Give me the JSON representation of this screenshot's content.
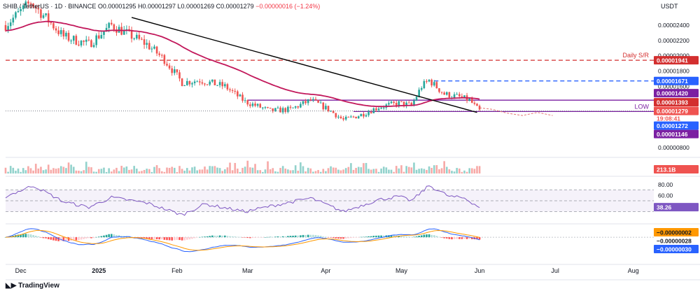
{
  "header": {
    "symbol": "SHIB / TetherUS · 1D · BINANCE",
    "open": "O0.00001295",
    "high": "H0.00001297",
    "low": "L0.00001269",
    "close": "C0.00001279",
    "change": "−0.00000016 (−1.24%)"
  },
  "currency": "USDT",
  "brand": "TradingView",
  "colors": {
    "up": "#26a69a",
    "down": "#ef5350",
    "ema": "#c2185b",
    "trendline": "#000000",
    "support": "#7b1fa2",
    "resistance": "#d32f2f",
    "level_blue": "#2962ff",
    "rsi": "#7e57c2",
    "macd": "#2962ff",
    "signal": "#ff9800"
  },
  "chart_data": {
    "type": "candlestick",
    "x_axis": {
      "range": [
        "2024-11-25",
        "2025-08-08"
      ],
      "tick_labels": [
        {
          "date": "2024-12-01",
          "label": "Dec"
        },
        {
          "date": "2025-01-01",
          "label": "2025"
        },
        {
          "date": "2025-02-01",
          "label": "Feb"
        },
        {
          "date": "2025-03-01",
          "label": "Mar"
        },
        {
          "date": "2025-04-01",
          "label": "Apr"
        },
        {
          "date": "2025-05-01",
          "label": "May"
        },
        {
          "date": "2025-06-01",
          "label": "Jun"
        },
        {
          "date": "2025-07-01",
          "label": "Jul"
        },
        {
          "date": "2025-08-01",
          "label": "Aug"
        }
      ]
    },
    "price_axis": {
      "range": [
        7e-06,
        2.6e-05
      ],
      "ticks": [
        "0.00002400",
        "0.00002200",
        "0.00002000",
        "0.00001800",
        "0.00001600",
        "0.00000800"
      ]
    },
    "key_points": [
      {
        "date": "2024-11-25",
        "close": 2.4e-05
      },
      {
        "date": "2024-12-05",
        "close": 2.7e-05
      },
      {
        "date": "2024-12-18",
        "close": 2.25e-05
      },
      {
        "date": "2024-12-28",
        "close": 2.15e-05
      },
      {
        "date": "2025-01-06",
        "close": 2.4e-05
      },
      {
        "date": "2025-01-20",
        "close": 2.15e-05
      },
      {
        "date": "2025-01-27",
        "close": 1.95e-05
      },
      {
        "date": "2025-02-03",
        "close": 1.65e-05
      },
      {
        "date": "2025-02-10",
        "close": 1.68e-05
      },
      {
        "date": "2025-02-20",
        "close": 1.6e-05
      },
      {
        "date": "2025-02-28",
        "close": 1.4e-05
      },
      {
        "date": "2025-03-10",
        "close": 1.28e-05
      },
      {
        "date": "2025-03-18",
        "close": 1.3e-05
      },
      {
        "date": "2025-03-26",
        "close": 1.42e-05
      },
      {
        "date": "2025-04-02",
        "close": 1.3e-05
      },
      {
        "date": "2025-04-08",
        "close": 1.16e-05
      },
      {
        "date": "2025-04-15",
        "close": 1.23e-05
      },
      {
        "date": "2025-04-22",
        "close": 1.33e-05
      },
      {
        "date": "2025-04-30",
        "close": 1.38e-05
      },
      {
        "date": "2025-05-05",
        "close": 1.35e-05
      },
      {
        "date": "2025-05-09",
        "close": 1.6e-05
      },
      {
        "date": "2025-05-12",
        "close": 1.68e-05
      },
      {
        "date": "2025-05-18",
        "close": 1.5e-05
      },
      {
        "date": "2025-05-24",
        "close": 1.46e-05
      },
      {
        "date": "2025-05-28",
        "close": 1.42e-05
      },
      {
        "date": "2025-05-31",
        "close": 1.31e-05
      },
      {
        "date": "2025-06-01",
        "close": 1.28e-05
      }
    ],
    "ema_label_value": "0.00001393",
    "horizontal_levels": [
      {
        "label": "Daily S/R",
        "value_label": "0.00001941",
        "value": 1.941e-05,
        "style": "dashed",
        "color": "#d32f2f",
        "from": "2024-11-25"
      },
      {
        "label": "",
        "value_label": "0.00001671",
        "value": 1.671e-05,
        "style": "dashed",
        "color": "#2962ff",
        "from": "2025-05-14"
      },
      {
        "label": "",
        "value_label": "0.00001420",
        "value": 1.42e-05,
        "style": "solid",
        "color": "#7b1fa2",
        "from": "2025-03-01"
      },
      {
        "label": "LOW",
        "value_label": "0.00001272",
        "value": 1.272e-05,
        "style": "solid",
        "color": "#7b1fa2",
        "from": "2025-04-12"
      }
    ],
    "current_price": {
      "value": 1.279e-05,
      "label": "0.00001279",
      "countdown": "19:08:41"
    },
    "extra_price_label": "0.00001146",
    "trendline": {
      "from": {
        "date": "2025-01-14",
        "value": 2.5e-05
      },
      "to": {
        "date": "2025-05-31",
        "value": 1.26e-05
      }
    },
    "projection": [
      {
        "date": "2025-06-01",
        "value": 1.32e-05
      },
      {
        "date": "2025-06-06",
        "value": 1.3e-05
      },
      {
        "date": "2025-06-12",
        "value": 1.25e-05
      },
      {
        "date": "2025-06-18",
        "value": 1.22e-05
      },
      {
        "date": "2025-06-24",
        "value": 1.26e-05
      },
      {
        "date": "2025-06-30",
        "value": 1.22e-05
      }
    ],
    "volume": {
      "last_label": "213.1B"
    },
    "rsi": {
      "range": [
        10,
        90
      ],
      "levels": [
        70,
        50,
        30
      ],
      "ticks": [
        "80.00",
        "60.00"
      ],
      "last_value": 38.26,
      "last_label": "38.26",
      "key_points": [
        {
          "date": "2024-11-25",
          "value": 58
        },
        {
          "date": "2024-12-06",
          "value": 78
        },
        {
          "date": "2024-12-18",
          "value": 48
        },
        {
          "date": "2024-12-28",
          "value": 38
        },
        {
          "date": "2025-01-06",
          "value": 56
        },
        {
          "date": "2025-01-20",
          "value": 46
        },
        {
          "date": "2025-02-03",
          "value": 24
        },
        {
          "date": "2025-02-12",
          "value": 44
        },
        {
          "date": "2025-02-28",
          "value": 30
        },
        {
          "date": "2025-03-10",
          "value": 40
        },
        {
          "date": "2025-03-26",
          "value": 55
        },
        {
          "date": "2025-04-08",
          "value": 30
        },
        {
          "date": "2025-04-22",
          "value": 52
        },
        {
          "date": "2025-04-30",
          "value": 58
        },
        {
          "date": "2025-05-05",
          "value": 50
        },
        {
          "date": "2025-05-12",
          "value": 78
        },
        {
          "date": "2025-05-20",
          "value": 58
        },
        {
          "date": "2025-05-26",
          "value": 55
        },
        {
          "date": "2025-06-01",
          "value": 38
        }
      ]
    },
    "macd": {
      "range": [
        -2.5e-06,
        1.3e-06
      ],
      "labels": {
        "histogram": "−0.00000002",
        "signal": "−0.00000028",
        "macd": "−0.00000030"
      }
    }
  }
}
